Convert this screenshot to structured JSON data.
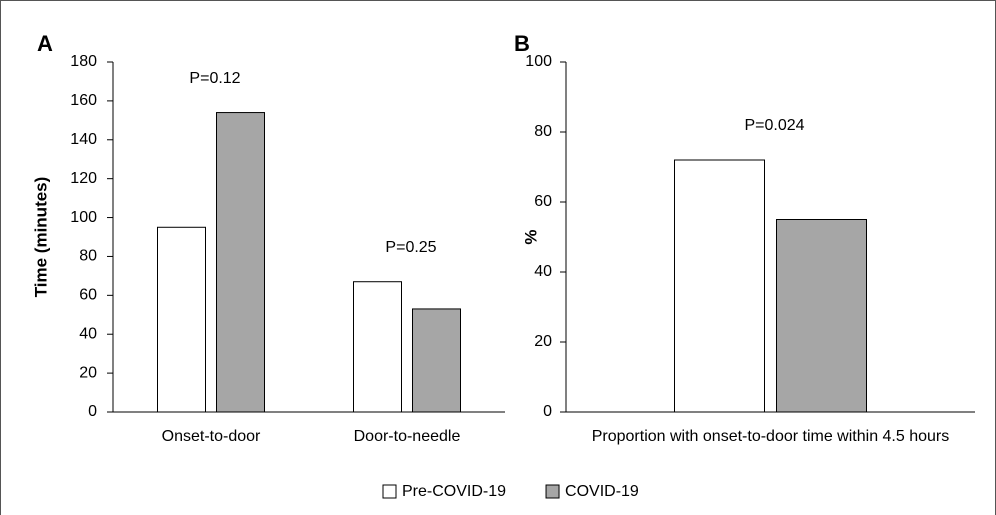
{
  "chart_data": [
    {
      "type": "bar",
      "panel_label": "A",
      "ylabel": "Time (minutes)",
      "categories": [
        "Onset-to-door",
        "Door-to-needle"
      ],
      "series": [
        {
          "name": "Pre-COVID-19",
          "color": "#ffffff",
          "values": [
            95,
            67
          ]
        },
        {
          "name": "COVID-19",
          "color": "#a6a6a6",
          "values": [
            154,
            53
          ]
        }
      ],
      "annotations": [
        "P=0.12",
        "P=0.25"
      ],
      "ylim": [
        0,
        180
      ],
      "yticks": [
        0,
        20,
        40,
        60,
        80,
        100,
        120,
        140,
        160,
        180
      ]
    },
    {
      "type": "bar",
      "panel_label": "B",
      "ylabel": "%",
      "categories": [
        "Proportion with onset-to-door time within 4.5 hours"
      ],
      "series": [
        {
          "name": "Pre-COVID-19",
          "color": "#ffffff",
          "values": [
            72
          ]
        },
        {
          "name": "COVID-19",
          "color": "#a6a6a6",
          "values": [
            55
          ]
        }
      ],
      "annotations": [
        "P=0.024"
      ],
      "ylim": [
        0,
        100
      ],
      "yticks": [
        0,
        20,
        40,
        60,
        80,
        100
      ]
    }
  ]
}
